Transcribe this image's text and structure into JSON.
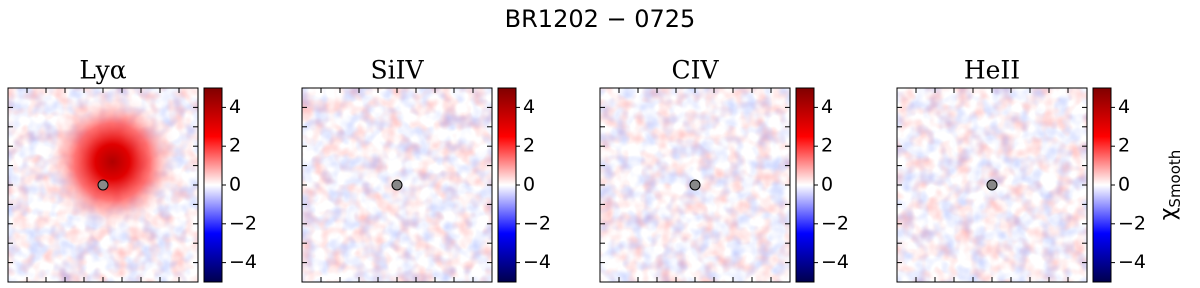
{
  "title": "BR1202 − 0725",
  "chart_data": [
    {
      "type": "heatmap",
      "title": "Lyα",
      "colormap": "seismic",
      "clim": [
        -5,
        5
      ],
      "cticks": [
        {
          "value": -4,
          "label": "−4"
        },
        {
          "value": -2,
          "label": "−2"
        },
        0,
        2,
        4
      ]
    },
    {
      "type": "heatmap",
      "title": "SiIV",
      "colormap": "seismic",
      "clim": [
        -5,
        5
      ],
      "cticks": [
        {
          "value": -4,
          "label": "−4"
        },
        {
          "value": -2,
          "label": "−2"
        },
        0,
        2,
        4
      ]
    },
    {
      "type": "heatmap",
      "title": "CIV",
      "colormap": "seismic",
      "clim": [
        -5,
        5
      ],
      "cticks": [
        {
          "value": -4,
          "label": "−4"
        },
        {
          "value": -2,
          "label": "−2"
        },
        0,
        2,
        4
      ]
    },
    {
      "type": "heatmap",
      "title": "HeII",
      "colormap": "seismic",
      "clim": [
        -5,
        5
      ],
      "cticks": [
        {
          "value": -4,
          "label": "−4"
        },
        {
          "value": -2,
          "label": "−2"
        },
        0,
        2,
        4
      ],
      "colorbar_label": {
        "symbol": "χ",
        "subscript": "Smooth"
      }
    }
  ]
}
